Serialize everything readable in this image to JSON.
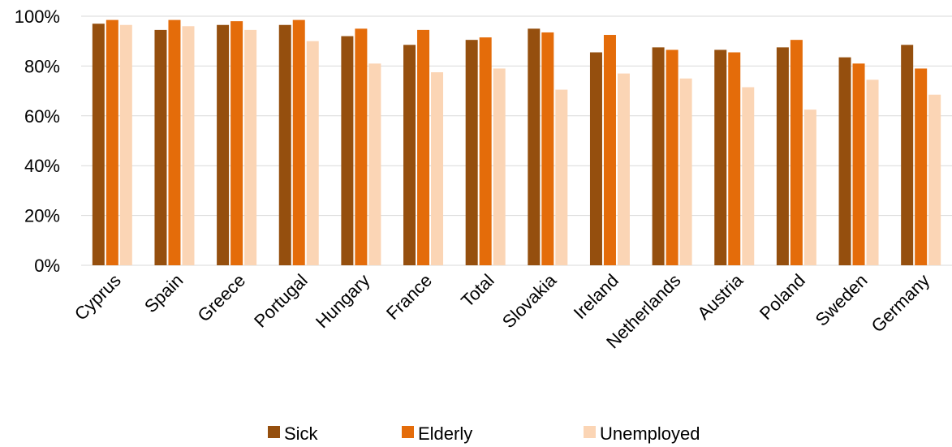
{
  "colors": {
    "sick": "#954f0e",
    "elderly": "#e46c0a",
    "unemployed": "#fbd5b5",
    "grid": "#d9d9d9"
  },
  "chart_data": {
    "type": "bar",
    "title": "",
    "xlabel": "",
    "ylabel": "",
    "ylim": [
      0,
      100
    ],
    "y_ticks": [
      "0%",
      "20%",
      "40%",
      "60%",
      "80%",
      "100%"
    ],
    "grid": true,
    "legend_position": "bottom",
    "categories": [
      "Cyprus",
      "Spain",
      "Greece",
      "Portugal",
      "Hungary",
      "France",
      "Total",
      "Slovakia",
      "Ireland",
      "Netherlands",
      "Austria",
      "Poland",
      "Sweden",
      "Germany"
    ],
    "series": [
      {
        "name": "Sick",
        "color": "#954f0e",
        "values": [
          97,
          94.5,
          96.5,
          96.5,
          92,
          88.5,
          90.5,
          95,
          85.5,
          87.5,
          86.5,
          87.5,
          83.5,
          88.5
        ]
      },
      {
        "name": "Elderly",
        "color": "#e46c0a",
        "values": [
          98.5,
          98.5,
          98,
          98.5,
          95,
          94.5,
          91.5,
          93.5,
          92.5,
          86.5,
          85.5,
          90.5,
          81,
          79
        ]
      },
      {
        "name": "Unemployed",
        "color": "#fbd5b5",
        "values": [
          96.5,
          96,
          94.5,
          90,
          81,
          77.5,
          79,
          70.5,
          77,
          75,
          71.5,
          62.5,
          74.5,
          68.5
        ]
      }
    ]
  }
}
